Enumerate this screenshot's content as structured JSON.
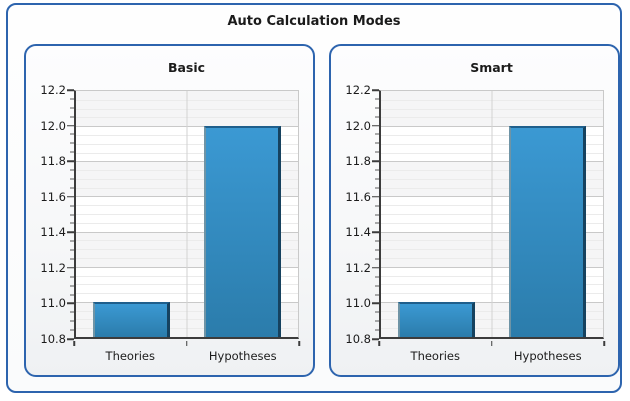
{
  "frame": {
    "title": "Auto Calculation Modes"
  },
  "colors": {
    "frame_border": "#2d64ae",
    "axis": "#3c3c3c",
    "gridline_major": "#c9c9c9",
    "gridline_minor": "#ebebeb",
    "interlace_band": "#f5f5f6",
    "text": "#1b1b1b",
    "bar_fill_top": "#3b99d3",
    "bar_fill_bottom": "#2b7cab",
    "bar_edge_dark": "#16425f"
  },
  "chart_data": [
    {
      "type": "bar",
      "title": "Basic",
      "categories": [
        "Theories",
        "Hypotheses"
      ],
      "values": [
        11,
        12
      ],
      "xlabel": "",
      "ylabel": "",
      "ylim": [
        10.8,
        12.2
      ],
      "ytick_step": 0.2,
      "yminor_step": 0.05,
      "ytick_labels": [
        "10.8",
        "11.0",
        "11.2",
        "11.4",
        "11.6",
        "11.8",
        "12.0",
        "12.2"
      ],
      "grid": true,
      "interlaced_bands": true,
      "legend": false
    },
    {
      "type": "bar",
      "title": "Smart",
      "categories": [
        "Theories",
        "Hypotheses"
      ],
      "values": [
        11,
        12
      ],
      "xlabel": "",
      "ylabel": "",
      "ylim": [
        10.8,
        12.2
      ],
      "ytick_step": 0.2,
      "yminor_step": 0.05,
      "ytick_labels": [
        "10.8",
        "11.0",
        "11.2",
        "11.4",
        "11.6",
        "11.8",
        "12.0",
        "12.2"
      ],
      "grid": true,
      "interlaced_bands": true,
      "legend": false
    }
  ]
}
